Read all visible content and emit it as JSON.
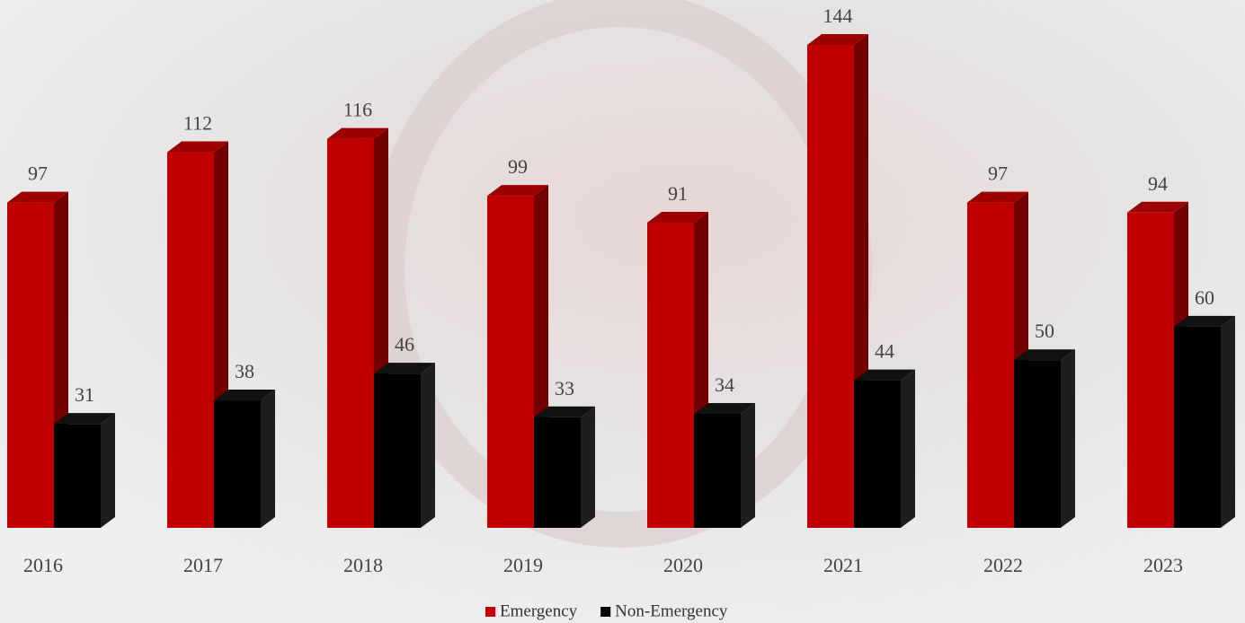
{
  "chart_data": {
    "type": "bar3d",
    "categories": [
      "2016",
      "2017",
      "2018",
      "2019",
      "2020",
      "2021",
      "2022",
      "2023"
    ],
    "series": [
      {
        "name": "Emergency",
        "color": "#c00000",
        "values": [
          97,
          112,
          116,
          99,
          91,
          144,
          97,
          94
        ]
      },
      {
        "name": "Non-Emergency",
        "color": "#000000",
        "values": [
          31,
          38,
          46,
          33,
          34,
          44,
          50,
          60
        ]
      }
    ]
  }
}
